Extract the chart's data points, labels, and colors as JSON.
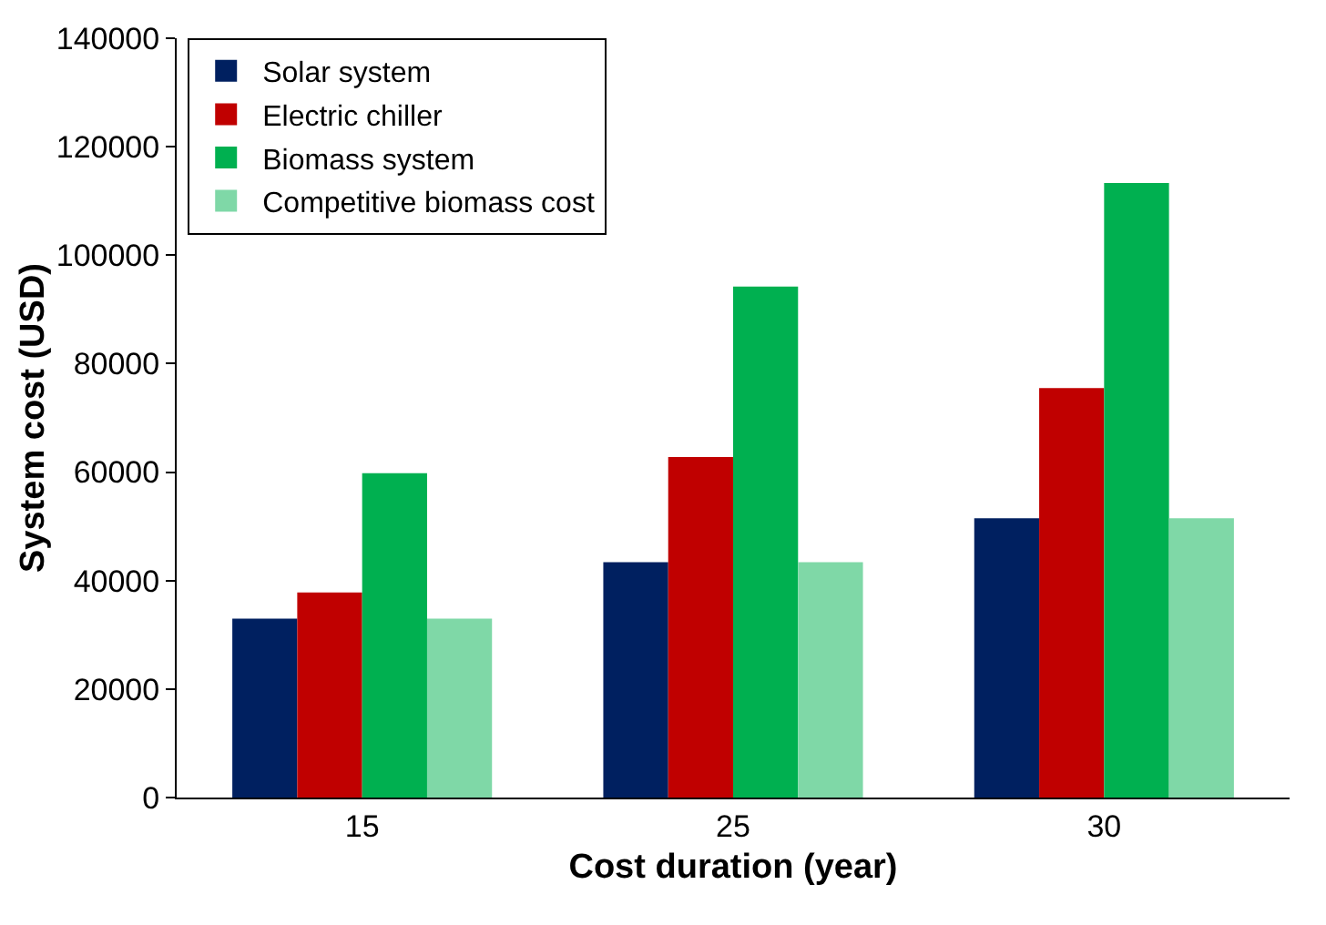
{
  "chart_data": {
    "type": "bar",
    "xlabel": "Cost duration (year)",
    "ylabel": "System cost (USD)",
    "categories": [
      "15",
      "25",
      "30"
    ],
    "series": [
      {
        "name": "Solar system",
        "color": "#002060",
        "values": [
          33000,
          43400,
          51500
        ]
      },
      {
        "name": "Electric chiller",
        "color": "#c00000",
        "values": [
          37800,
          62800,
          75500
        ]
      },
      {
        "name": "Biomass system",
        "color": "#00b050",
        "values": [
          59800,
          94200,
          113300
        ]
      },
      {
        "name": "Competitive biomass cost",
        "color": "#7fd8a7",
        "values": [
          33000,
          43400,
          51500
        ]
      }
    ],
    "ylim": [
      0,
      140000
    ],
    "yticks": [
      0,
      20000,
      40000,
      60000,
      80000,
      100000,
      120000,
      140000
    ],
    "grid": false,
    "legend": "top left"
  }
}
